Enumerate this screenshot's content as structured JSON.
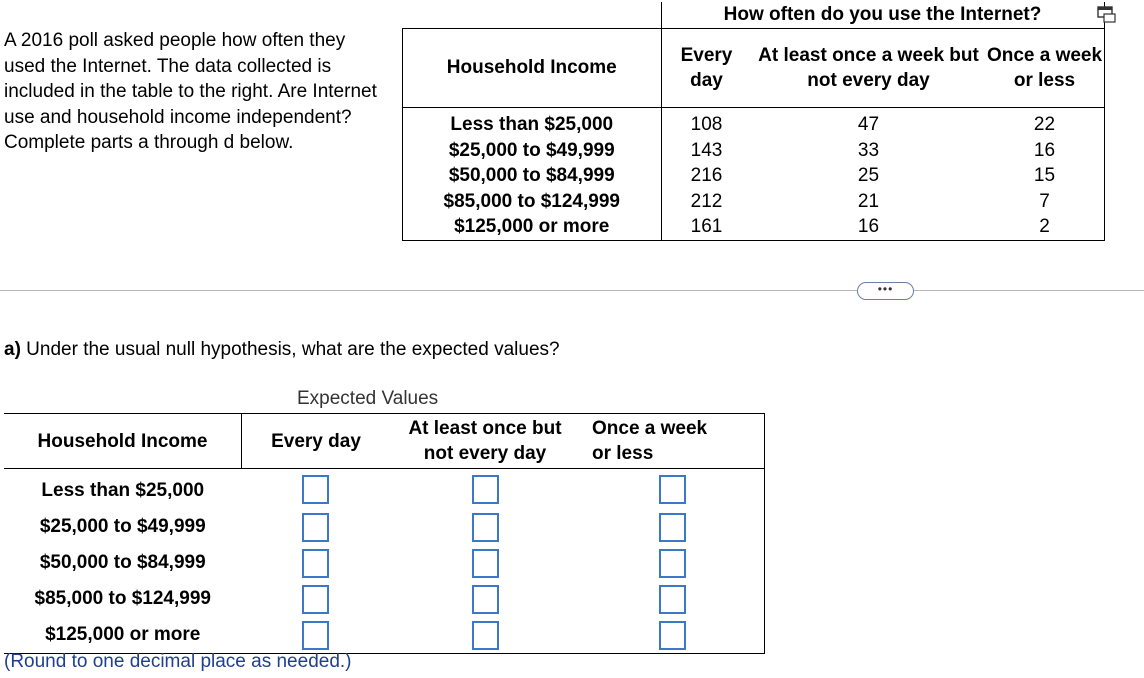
{
  "intro": {
    "text": "A 2016 poll asked people how often they used the Internet. The data collected is included in the table to the right. Are Internet use and household income independent? Complete parts a through d below."
  },
  "data_table": {
    "super_header": "How often do you use the Internet?",
    "row_header": "Household Income",
    "col_every_day": "Every day",
    "col_at_least": "At least once a week but not every day",
    "col_once": "Once a week or less",
    "rows": [
      {
        "income": "Less than $25,000",
        "every_day": "108",
        "at_least": "47",
        "once": "22"
      },
      {
        "income": "$25,000 to $49,999",
        "every_day": "143",
        "at_least": "33",
        "once": "16"
      },
      {
        "income": "$50,000 to $84,999",
        "every_day": "216",
        "at_least": "25",
        "once": "15"
      },
      {
        "income": "$85,000 to $124,999",
        "every_day": "212",
        "at_least": "21",
        "once": "7"
      },
      {
        "income": "$125,000 or more",
        "every_day": "161",
        "at_least": "16",
        "once": "2"
      }
    ]
  },
  "expand_label": "•••",
  "icons": {
    "popout": "popout-icon"
  },
  "question": {
    "part": "a)",
    "text": " Under the usual null hypothesis, what are the expected values?"
  },
  "expected": {
    "caption": "Expected Values",
    "header_income": "Household Income",
    "header_every_day": "Every day",
    "header_at_least_1": "At least once but",
    "header_at_least_2": "not every day",
    "header_once_1": "Once a week",
    "header_once_2": "or less",
    "rows": [
      {
        "income": "Less than $25,000",
        "every_day": "",
        "at_least": "",
        "once": ""
      },
      {
        "income": "$25,000 to $49,999",
        "every_day": "",
        "at_least": "",
        "once": ""
      },
      {
        "income": "$50,000 to $84,999",
        "every_day": "",
        "at_least": "",
        "once": ""
      },
      {
        "income": "$85,000 to $124,999",
        "every_day": "",
        "at_least": "",
        "once": ""
      },
      {
        "income": "$125,000 or more",
        "every_day": "",
        "at_least": "",
        "once": ""
      }
    ]
  },
  "round_note": "(Round to one decimal place as needed.)",
  "colors": {
    "input_border": "#3c78c8",
    "note_text": "#1f3f8f"
  }
}
